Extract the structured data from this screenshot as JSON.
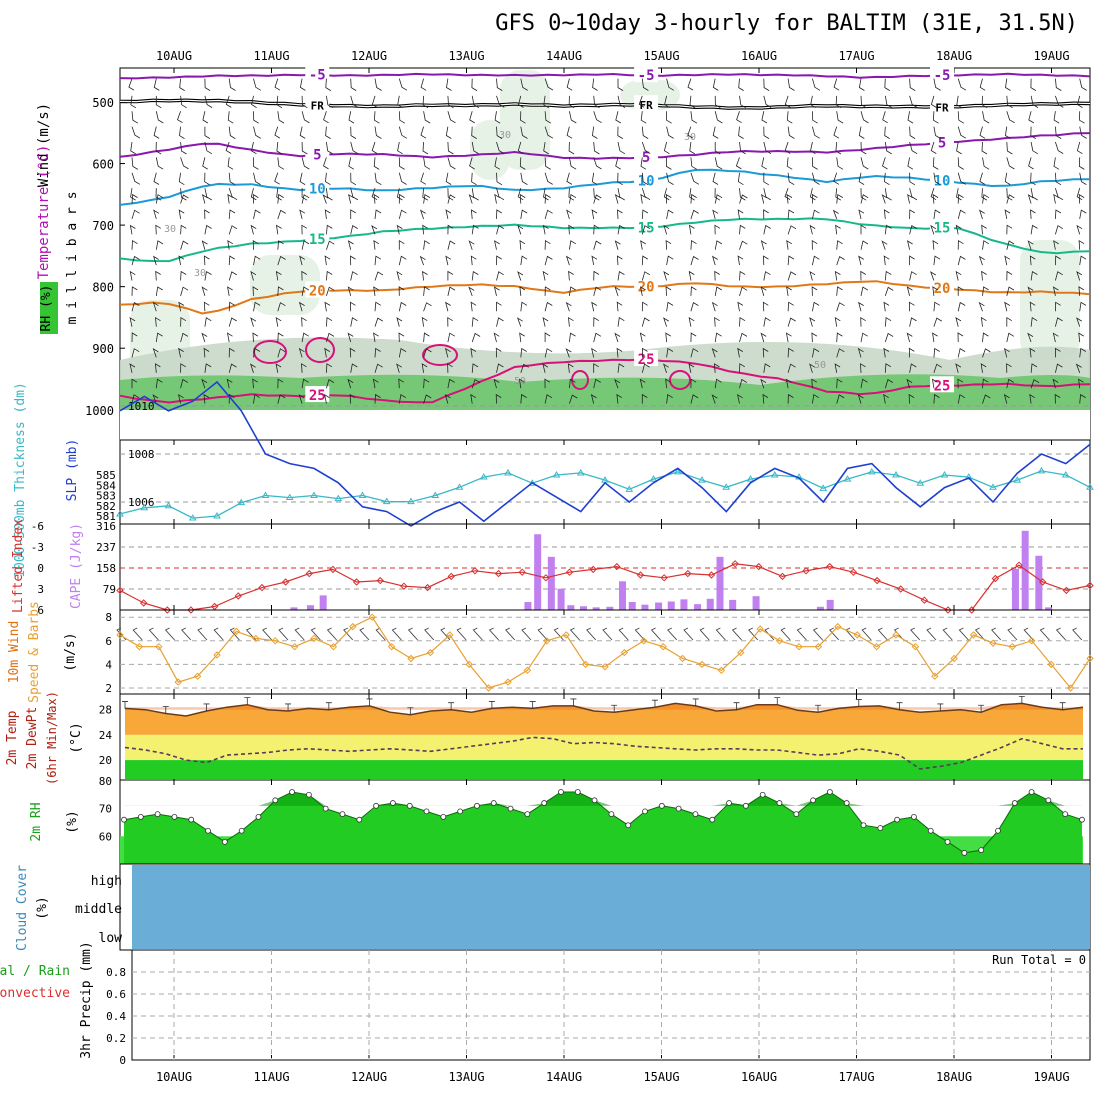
{
  "header": {
    "title": "GFS 0~10day 3-hourly for BALTIM (31E, 31.5N)"
  },
  "time_axis": {
    "date_labels": [
      "10AUG",
      "11AUG",
      "12AUG",
      "13AUG",
      "14AUG",
      "15AUG",
      "16AUG",
      "17AUG",
      "18AUG",
      "19AUG"
    ]
  },
  "colors": {
    "purple_isotherm": "#8a18b0",
    "blue_isotherm": "#1c9ad8",
    "teal_isotherm": "#16b88a",
    "orange_isotherm": "#e07818",
    "magenta_isotherm": "#d8107a",
    "slp_line": "#1e3fd0",
    "thickness_line": "#38b8c8",
    "lifted_index": "#d83030",
    "cape_bars": "#c080f0",
    "wind_speed": "#e8a030",
    "temp_fill": "#f8a838",
    "temp_peak": "#e86010",
    "dewpoint_fill": "#f4f070",
    "rh_fill": "#22cc22",
    "cloud_fill": "#6aaed8"
  },
  "chart_data": [
    {
      "type": "line",
      "name": "upper-air-cross-section",
      "legend": {
        "wind": "Wind (m/s)",
        "temperature": "Temperature (°C)",
        "rh": "RH (%)",
        "y_axis": "m i l l i b a r s"
      },
      "ylabel": "millibars",
      "ylim": [
        1000,
        450
      ],
      "y_ticks": [
        500,
        600,
        700,
        800,
        900,
        1000
      ],
      "contour_labels": {
        "freezing": "FR",
        "isotherms": [
          "5",
          "10",
          "15",
          "20",
          "25"
        ],
        "rh": [
          "30",
          "50"
        ]
      },
      "series": [
        {
          "name": "-5",
          "level_mb": [
            462,
            460,
            458,
            457,
            456,
            457,
            456,
            455,
            456,
            457,
            456,
            455,
            457,
            456,
            455,
            456,
            458,
            460,
            458,
            456,
            455,
            456,
            458
          ]
        },
        {
          "name": "FR",
          "level_mb": [
            500,
            497,
            498,
            500,
            504,
            506,
            507,
            505,
            505,
            504,
            506,
            505,
            504,
            508,
            510,
            508,
            506,
            507,
            508,
            507,
            505,
            503,
            502
          ]
        },
        {
          "name": "5",
          "level_mb": [
            590,
            578,
            566,
            578,
            588,
            584,
            585,
            590,
            586,
            582,
            590,
            592,
            590,
            586,
            580,
            580,
            582,
            576,
            570,
            564,
            560,
            554,
            550
          ]
        },
        {
          "name": "10",
          "level_mb": [
            668,
            656,
            634,
            634,
            643,
            640,
            644,
            640,
            635,
            644,
            640,
            632,
            628,
            610,
            612,
            620,
            630,
            620,
            624,
            630,
            638,
            628,
            625
          ]
        },
        {
          "name": "15",
          "level_mb": [
            755,
            760,
            740,
            730,
            726,
            720,
            710,
            706,
            702,
            700,
            704,
            705,
            704,
            696,
            690,
            690,
            690,
            700,
            706,
            704,
            730,
            746,
            742
          ]
        },
        {
          "name": "20",
          "level_mb": [
            830,
            825,
            846,
            820,
            808,
            806,
            806,
            800,
            796,
            800,
            810,
            800,
            800,
            794,
            800,
            800,
            796,
            790,
            800,
            804,
            810,
            808,
            812
          ]
        },
        {
          "name": "25",
          "level_mb": [
            978,
            988,
            982,
            975,
            978,
            976,
            985,
            990,
            960,
            930,
            922,
            920,
            918,
            924,
            940,
            950,
            970,
            975,
            962,
            960,
            958,
            962,
            958
          ]
        }
      ]
    },
    {
      "type": "line",
      "name": "thickness-and-slp",
      "left_label": "1000-500mb Thickness (dm)",
      "right_label": "SLP (mb)",
      "left_ticks": [
        581,
        582,
        583,
        584,
        585
      ],
      "right_ticks": [
        1006,
        1008,
        1010
      ],
      "series": [
        {
          "name": "thickness",
          "units": "dm",
          "values": [
            581.2,
            581.8,
            582.0,
            580.8,
            581.0,
            582.3,
            583.0,
            582.8,
            583.0,
            582.7,
            583.0,
            582.4,
            582.4,
            583.0,
            583.8,
            584.8,
            585.2,
            584.2,
            585.0,
            585.2,
            584.5,
            583.6,
            584.6,
            585.3,
            584.5,
            583.8,
            584.6,
            585.0,
            584.8,
            583.7,
            584.6,
            585.3,
            585.0,
            584.2,
            585.0,
            584.8,
            583.8,
            584.5,
            585.4,
            585.0,
            583.8
          ]
        },
        {
          "name": "slp",
          "units": "mb",
          "values": [
            1009.8,
            1010.4,
            1009.8,
            1010.2,
            1011.0,
            1009.8,
            1008.0,
            1007.6,
            1007.4,
            1006.8,
            1005.8,
            1005.6,
            1005.0,
            1005.6,
            1006.0,
            1005.2,
            1006.0,
            1006.8,
            1006.2,
            1005.6,
            1006.8,
            1006.0,
            1006.8,
            1007.4,
            1006.6,
            1005.6,
            1006.8,
            1007.4,
            1007.0,
            1006.0,
            1007.4,
            1007.6,
            1006.6,
            1005.8,
            1006.6,
            1007.0,
            1006.0,
            1007.2,
            1008.0,
            1007.6,
            1008.4
          ]
        }
      ]
    },
    {
      "type": "bar",
      "name": "lifted-index-and-cape",
      "left_label": "Lifted Index",
      "right_label": "CAPE (J/kg)",
      "li_ticks": [
        -6,
        -3,
        0,
        3,
        6
      ],
      "cape_ticks": [
        79,
        158,
        237,
        316
      ],
      "lifted_index": [
        3.2,
        5.0,
        6.5,
        6.8,
        5.5,
        4.0,
        2.8,
        2.0,
        0.8,
        0.2,
        2.0,
        1.8,
        2.6,
        2.8,
        1.2,
        0.4,
        0.8,
        0.6,
        1.4,
        0.6,
        0.2,
        -0.2,
        1.0,
        1.4,
        0.8,
        1.0,
        -0.6,
        -0.2,
        1.2,
        0.4,
        -0.2,
        0.6,
        1.8,
        3.0,
        4.6,
        7.5,
        7.8,
        1.5,
        -0.4,
        2.0,
        3.2,
        2.5
      ],
      "cape_bars": [
        {
          "day": 1.23,
          "value": 10
        },
        {
          "day": 1.4,
          "value": 18
        },
        {
          "day": 1.53,
          "value": 55
        },
        {
          "day": 3.63,
          "value": 30
        },
        {
          "day": 3.73,
          "value": 285
        },
        {
          "day": 3.87,
          "value": 200
        },
        {
          "day": 3.97,
          "value": 80
        },
        {
          "day": 4.07,
          "value": 18
        },
        {
          "day": 4.2,
          "value": 14
        },
        {
          "day": 4.33,
          "value": 10
        },
        {
          "day": 4.47,
          "value": 12
        },
        {
          "day": 4.6,
          "value": 108
        },
        {
          "day": 4.7,
          "value": 30
        },
        {
          "day": 4.83,
          "value": 20
        },
        {
          "day": 4.97,
          "value": 28
        },
        {
          "day": 5.1,
          "value": 32
        },
        {
          "day": 5.23,
          "value": 40
        },
        {
          "day": 5.37,
          "value": 22
        },
        {
          "day": 5.5,
          "value": 42
        },
        {
          "day": 5.6,
          "value": 200
        },
        {
          "day": 5.73,
          "value": 38
        },
        {
          "day": 5.97,
          "value": 52
        },
        {
          "day": 6.63,
          "value": 12
        },
        {
          "day": 6.73,
          "value": 38
        },
        {
          "day": 8.63,
          "value": 155
        },
        {
          "day": 8.73,
          "value": 298
        },
        {
          "day": 8.87,
          "value": 204
        },
        {
          "day": 8.97,
          "value": 10
        }
      ]
    },
    {
      "type": "line",
      "name": "wind-speed",
      "label": "10m Wind Speed & Barbs",
      "ylabel": "(m/s)",
      "ylim": [
        2,
        8
      ],
      "y_ticks": [
        2,
        4,
        6,
        8
      ],
      "values": [
        6.5,
        5.5,
        5.5,
        2.5,
        3.0,
        4.8,
        6.8,
        6.2,
        6.0,
        5.5,
        6.2,
        5.5,
        7.2,
        8.0,
        5.5,
        4.5,
        5.0,
        6.5,
        4.0,
        2.0,
        2.5,
        3.5,
        6.0,
        6.5,
        4.0,
        3.8,
        5.0,
        6.0,
        5.5,
        4.5,
        4.0,
        3.5,
        5.0,
        7.0,
        6.0,
        5.5,
        5.5,
        7.2,
        6.5,
        5.5,
        6.5,
        5.5,
        3.0,
        4.5,
        6.5,
        5.8,
        5.5,
        6.0,
        4.0,
        2.0,
        4.5
      ]
    },
    {
      "type": "area",
      "name": "temperature-dewpoint",
      "label": "2m Temp 2m DewPt (6hr Min/Max)",
      "ylabel": "(°C)",
      "ylim": [
        17,
        30
      ],
      "y_ticks": [
        20,
        24,
        28
      ],
      "series": [
        {
          "name": "temp",
          "values": [
            28.2,
            28.0,
            27.4,
            27.0,
            27.8,
            28.4,
            28.8,
            28.0,
            27.8,
            28.2,
            28.0,
            28.4,
            28.6,
            27.6,
            27.2,
            27.8,
            28.0,
            27.6,
            28.2,
            28.4,
            28.2,
            28.6,
            28.6,
            27.8,
            27.6,
            28.0,
            28.4,
            29.0,
            28.6,
            27.8,
            28.0,
            28.8,
            28.8,
            27.9,
            27.6,
            28.2,
            28.5,
            28.6,
            28.0,
            27.6,
            27.8,
            28.0,
            27.6,
            28.8,
            29.0,
            28.4,
            28.0,
            28.4
          ]
        },
        {
          "name": "dewpoint",
          "values": [
            22.0,
            21.6,
            21.0,
            20.0,
            19.6,
            20.8,
            21.0,
            21.2,
            21.6,
            21.8,
            21.6,
            21.4,
            21.6,
            21.8,
            21.6,
            21.4,
            21.8,
            22.2,
            22.6,
            23.0,
            23.6,
            23.4,
            22.6,
            22.8,
            22.6,
            22.2,
            22.0,
            21.8,
            21.6,
            21.8,
            21.8,
            21.6,
            21.6,
            21.2,
            20.8,
            21.0,
            21.8,
            21.4,
            20.8,
            18.6,
            19.0,
            19.6,
            20.8,
            22.0,
            23.4,
            22.6,
            21.8,
            21.8
          ]
        }
      ]
    },
    {
      "type": "area",
      "name": "relative-humidity",
      "label": "2m RH",
      "ylabel": "(%)",
      "ylim": [
        50,
        80
      ],
      "y_ticks": [
        60,
        70,
        80
      ],
      "values": [
        66,
        67,
        68,
        67,
        66,
        62,
        58,
        62,
        67,
        73,
        76,
        75,
        70,
        68,
        66,
        71,
        72,
        71,
        69,
        67,
        69,
        71,
        72,
        70,
        68,
        72,
        76,
        76,
        73,
        68,
        64,
        69,
        71,
        70,
        68,
        66,
        72,
        71,
        75,
        72,
        68,
        73,
        76,
        72,
        64,
        63,
        66,
        67,
        62,
        58,
        54,
        55,
        62,
        72,
        76,
        73,
        68,
        66
      ]
    },
    {
      "type": "table",
      "name": "cloud-cover",
      "label": "Cloud Cover (%)",
      "levels": [
        "high",
        "middle",
        "low"
      ],
      "value_pct": 100
    },
    {
      "type": "bar",
      "name": "precipitation",
      "label": "Total / Rain Convective",
      "ylabel": "3hr Precip (mm)",
      "ylim": [
        0,
        1
      ],
      "y_ticks": [
        "0",
        "0.2",
        "0.4",
        "0.6",
        "0.8"
      ],
      "run_total": "Run Total = 0",
      "values": []
    }
  ]
}
